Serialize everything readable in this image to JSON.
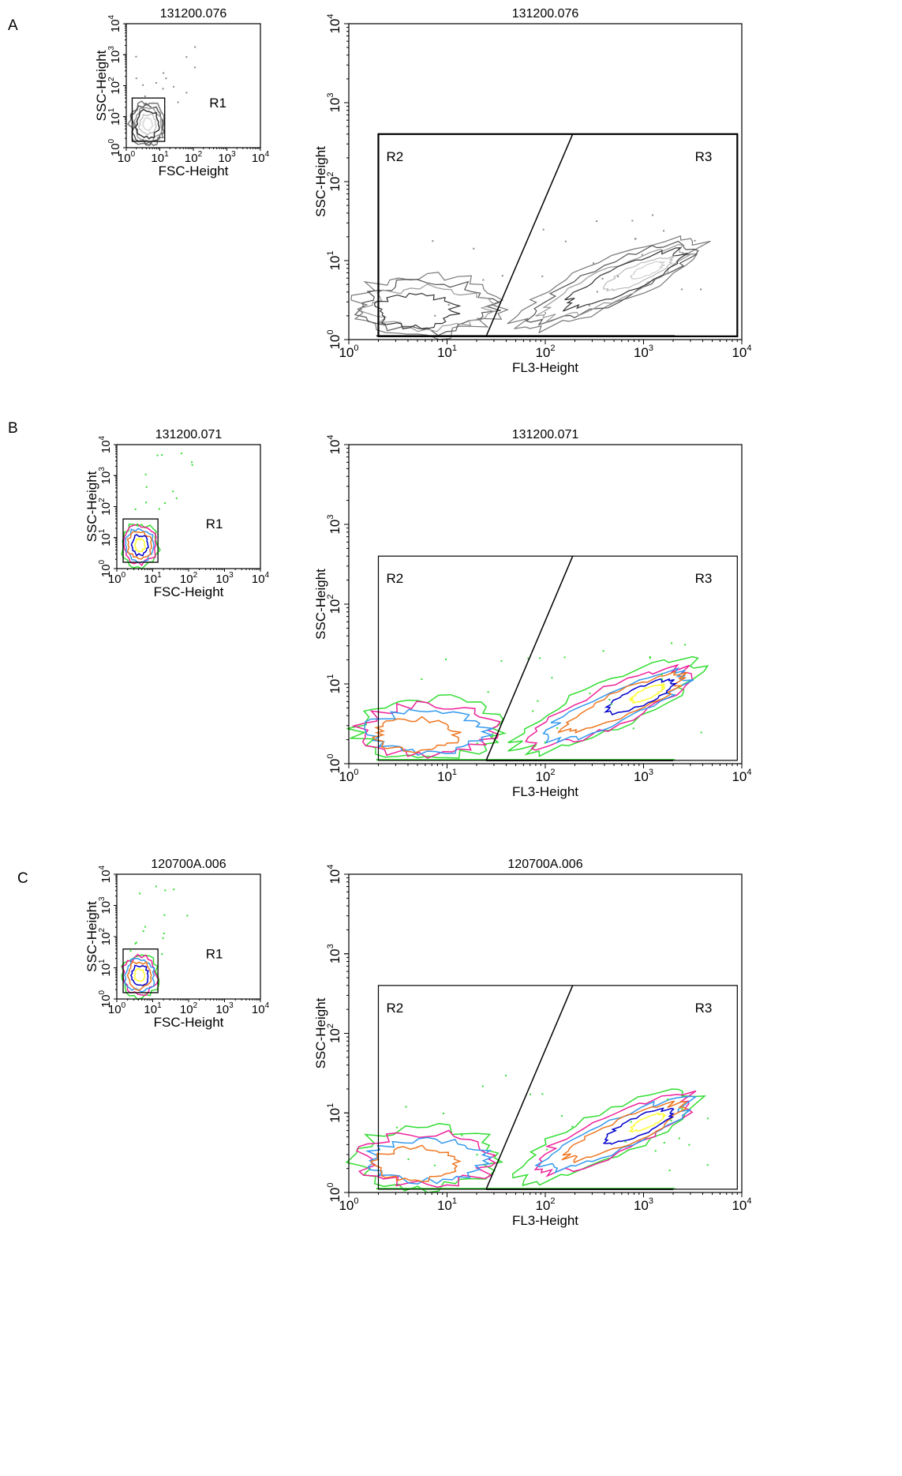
{
  "figure": {
    "panels": [
      {
        "label": "A",
        "style": "gray",
        "small": {
          "title": "131200.076",
          "xlabel": "FSC-Height",
          "ylabel": "SSC-Height",
          "region": "R1"
        },
        "large": {
          "title": "131200.076",
          "xlabel": "FL3-Height",
          "ylabel": "SSC-Height",
          "regions": [
            "R2",
            "R3"
          ]
        }
      },
      {
        "label": "B",
        "style": "color",
        "small": {
          "title": "131200.071",
          "xlabel": "FSC-Height",
          "ylabel": "SSC-Height",
          "region": "R1"
        },
        "large": {
          "title": "131200.071",
          "xlabel": "FL3-Height",
          "ylabel": "SSC-Height",
          "regions": [
            "R2",
            "R3"
          ]
        }
      },
      {
        "label": "C",
        "style": "color",
        "small": {
          "title": "120700A.006",
          "xlabel": "FSC-Height",
          "ylabel": "SSC-Height",
          "region": "R1"
        },
        "large": {
          "title": "120700A.006",
          "xlabel": "FL3-Height",
          "ylabel": "SSC-Height",
          "regions": [
            "R2",
            "R3"
          ]
        }
      }
    ],
    "tick_base": "10",
    "tick_exponents": [
      "0",
      "1",
      "2",
      "3",
      "4"
    ]
  },
  "chart_data": [
    {
      "type": "contour",
      "panel": "A",
      "plot": "small",
      "title": "131200.076",
      "xlabel": "FSC-Height",
      "ylabel": "SSC-Height",
      "x_scale": "log",
      "y_scale": "log",
      "xlim": [
        1,
        10000
      ],
      "ylim": [
        1,
        10000
      ],
      "regions": [
        {
          "name": "R1",
          "shape": "rectangle",
          "x": [
            1.5,
            14
          ],
          "y": [
            1.6,
            40
          ]
        }
      ],
      "contour_colors": [
        "#555555",
        "#8a8a8a",
        "#c4c4c4"
      ]
    },
    {
      "type": "contour",
      "panel": "A",
      "plot": "large",
      "title": "131200.076",
      "xlabel": "FL3-Height",
      "ylabel": "SSC-Height",
      "x_scale": "log",
      "y_scale": "log",
      "xlim": [
        1,
        10000
      ],
      "ylim": [
        1,
        10000
      ],
      "regions": [
        {
          "name": "R2",
          "shape": "polygon",
          "points": [
            [
              2,
              400
            ],
            [
              190,
              400
            ],
            [
              25,
              1.1
            ],
            [
              2,
              1.1
            ]
          ]
        },
        {
          "name": "R3",
          "shape": "polygon",
          "points": [
            [
              190,
              400
            ],
            [
              9000,
              400
            ],
            [
              9000,
              1.1
            ],
            [
              25,
              1.1
            ]
          ]
        }
      ],
      "contour_colors": [
        "#555555",
        "#8a8a8a",
        "#c4c4c4"
      ]
    },
    {
      "type": "contour",
      "panel": "B",
      "plot": "small",
      "title": "131200.071",
      "xlabel": "FSC-Height",
      "ylabel": "SSC-Height",
      "x_scale": "log",
      "y_scale": "log",
      "xlim": [
        1,
        10000
      ],
      "ylim": [
        1,
        10000
      ],
      "regions": [
        {
          "name": "R1",
          "shape": "rectangle",
          "x": [
            1.5,
            14
          ],
          "y": [
            1.6,
            40
          ]
        }
      ],
      "contour_colors": [
        "#33dd33",
        "#ee2299",
        "#3399ee",
        "#ee7722",
        "#0000cc",
        "#ffff33"
      ]
    },
    {
      "type": "contour",
      "panel": "B",
      "plot": "large",
      "title": "131200.071",
      "xlabel": "FL3-Height",
      "ylabel": "SSC-Height",
      "x_scale": "log",
      "y_scale": "log",
      "xlim": [
        1,
        10000
      ],
      "ylim": [
        1,
        10000
      ],
      "regions": [
        {
          "name": "R2",
          "shape": "polygon",
          "points": [
            [
              2,
              400
            ],
            [
              190,
              400
            ],
            [
              25,
              1.1
            ],
            [
              2,
              1.1
            ]
          ]
        },
        {
          "name": "R3",
          "shape": "polygon",
          "points": [
            [
              190,
              400
            ],
            [
              9000,
              400
            ],
            [
              9000,
              1.1
            ],
            [
              25,
              1.1
            ]
          ]
        }
      ],
      "contour_colors": [
        "#33dd33",
        "#ee2299",
        "#3399ee",
        "#ee7722",
        "#0000cc",
        "#ffff33"
      ]
    },
    {
      "type": "contour",
      "panel": "C",
      "plot": "small",
      "title": "120700A.006",
      "xlabel": "FSC-Height",
      "ylabel": "SSC-Height",
      "x_scale": "log",
      "y_scale": "log",
      "xlim": [
        1,
        10000
      ],
      "ylim": [
        1,
        10000
      ],
      "regions": [
        {
          "name": "R1",
          "shape": "rectangle",
          "x": [
            1.5,
            14
          ],
          "y": [
            1.6,
            40
          ]
        }
      ],
      "contour_colors": [
        "#33dd33",
        "#ee2299",
        "#3399ee",
        "#ee7722",
        "#0000cc",
        "#ffff33"
      ]
    },
    {
      "type": "contour",
      "panel": "C",
      "plot": "large",
      "title": "120700A.006",
      "xlabel": "FL3-Height",
      "ylabel": "SSC-Height",
      "x_scale": "log",
      "y_scale": "log",
      "xlim": [
        1,
        10000
      ],
      "ylim": [
        1,
        10000
      ],
      "regions": [
        {
          "name": "R2",
          "shape": "polygon",
          "points": [
            [
              2,
              400
            ],
            [
              190,
              400
            ],
            [
              25,
              1.1
            ],
            [
              2,
              1.1
            ]
          ]
        },
        {
          "name": "R3",
          "shape": "polygon",
          "points": [
            [
              190,
              400
            ],
            [
              9000,
              400
            ],
            [
              9000,
              1.1
            ],
            [
              25,
              1.1
            ]
          ]
        }
      ],
      "contour_colors": [
        "#33dd33",
        "#ee2299",
        "#3399ee",
        "#ee7722",
        "#0000cc",
        "#ffff33"
      ]
    }
  ]
}
